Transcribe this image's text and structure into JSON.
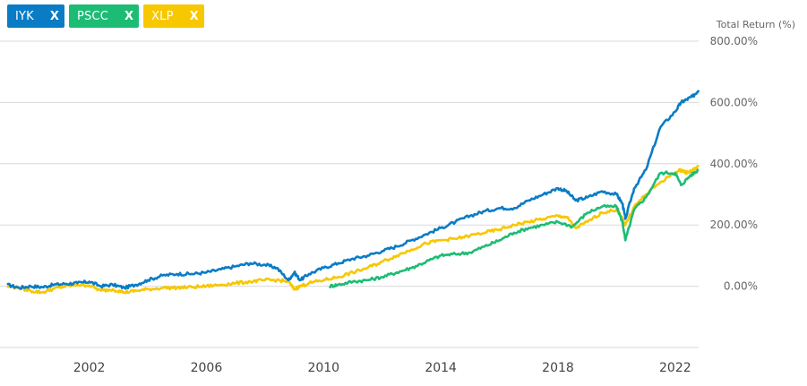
{
  "legend_chips": [
    {
      "label": "IYK",
      "close": "X",
      "color": "#0a7cc6"
    },
    {
      "label": "PSCC",
      "close": "X",
      "color": "#1dbc74"
    },
    {
      "label": "XLP",
      "close": "X",
      "color": "#f7c700"
    }
  ],
  "chart_data": {
    "type": "line",
    "ylabel": "Total Return (%)",
    "ylim": [
      -200,
      800
    ],
    "y_ticks": [
      "800.00%",
      "600.00%",
      "400.00%",
      "200.00%",
      "0.00%"
    ],
    "y_tick_values": [
      800,
      600,
      400,
      200,
      0
    ],
    "xlim": [
      1999.2,
      2022.8
    ],
    "x_ticks": [
      "2002",
      "2006",
      "2010",
      "2014",
      "2018",
      "2022"
    ],
    "x_tick_values": [
      2002,
      2006,
      2010,
      2014,
      2018,
      2022
    ],
    "grid": true,
    "series": [
      {
        "name": "IYK",
        "color": "#0a7cc6",
        "x": [
          1999.2,
          1999.6,
          2000.0,
          2000.4,
          2000.8,
          2001.2,
          2001.6,
          2002.0,
          2002.4,
          2002.8,
          2003.2,
          2003.6,
          2004.0,
          2004.5,
          2005.0,
          2005.5,
          2006.0,
          2006.5,
          2007.0,
          2007.5,
          2008.0,
          2008.4,
          2008.8,
          2009.0,
          2009.2,
          2009.5,
          2010.0,
          2010.5,
          2011.0,
          2011.5,
          2012.0,
          2012.5,
          2013.0,
          2013.5,
          2014.0,
          2014.5,
          2015.0,
          2015.5,
          2016.0,
          2016.5,
          2017.0,
          2017.5,
          2018.0,
          2018.3,
          2018.6,
          2019.0,
          2019.5,
          2020.0,
          2020.2,
          2020.3,
          2020.6,
          2021.0,
          2021.5,
          2022.0,
          2022.2,
          2022.4,
          2022.6,
          2022.8
        ],
        "values": [
          5,
          -5,
          0,
          -3,
          5,
          8,
          10,
          15,
          0,
          5,
          -5,
          5,
          20,
          35,
          40,
          40,
          45,
          55,
          65,
          75,
          70,
          60,
          20,
          45,
          20,
          40,
          60,
          75,
          90,
          100,
          115,
          130,
          150,
          170,
          190,
          210,
          230,
          245,
          255,
          255,
          280,
          300,
          320,
          310,
          280,
          290,
          310,
          300,
          270,
          220,
          320,
          380,
          520,
          570,
          600,
          610,
          620,
          640
        ]
      },
      {
        "name": "PSCC",
        "color": "#1dbc74",
        "x": [
          2010.2,
          2010.5,
          2011.0,
          2011.5,
          2012.0,
          2012.5,
          2013.0,
          2013.5,
          2014.0,
          2014.5,
          2015.0,
          2015.5,
          2016.0,
          2016.5,
          2017.0,
          2017.5,
          2018.0,
          2018.5,
          2019.0,
          2019.5,
          2020.0,
          2020.2,
          2020.3,
          2020.6,
          2021.0,
          2021.5,
          2022.0,
          2022.2,
          2022.5,
          2022.8
        ],
        "values": [
          0,
          5,
          15,
          20,
          30,
          45,
          60,
          80,
          100,
          105,
          110,
          130,
          150,
          175,
          190,
          200,
          210,
          195,
          240,
          260,
          260,
          210,
          150,
          250,
          290,
          370,
          370,
          330,
          360,
          380
        ]
      },
      {
        "name": "XLP",
        "color": "#f7c700",
        "x": [
          1999.2,
          1999.6,
          2000.0,
          2000.4,
          2000.8,
          2001.2,
          2001.6,
          2002.0,
          2002.4,
          2002.8,
          2003.2,
          2003.6,
          2004.0,
          2004.5,
          2005.0,
          2005.5,
          2006.0,
          2006.5,
          2007.0,
          2007.5,
          2008.0,
          2008.4,
          2008.8,
          2009.0,
          2009.2,
          2009.5,
          2010.0,
          2010.5,
          2011.0,
          2011.5,
          2012.0,
          2012.5,
          2013.0,
          2013.5,
          2014.0,
          2014.5,
          2015.0,
          2015.5,
          2016.0,
          2016.5,
          2017.0,
          2017.5,
          2018.0,
          2018.3,
          2018.6,
          2019.0,
          2019.5,
          2020.0,
          2020.2,
          2020.3,
          2020.6,
          2021.0,
          2021.5,
          2022.0,
          2022.2,
          2022.4,
          2022.6,
          2022.8
        ],
        "values": [
          0,
          -5,
          -15,
          -20,
          -8,
          0,
          5,
          3,
          -15,
          -10,
          -20,
          -15,
          -10,
          -5,
          -5,
          -3,
          0,
          5,
          10,
          15,
          20,
          20,
          15,
          -10,
          0,
          10,
          20,
          30,
          45,
          60,
          80,
          100,
          120,
          140,
          150,
          155,
          165,
          175,
          185,
          200,
          210,
          220,
          230,
          225,
          190,
          210,
          240,
          250,
          220,
          200,
          260,
          300,
          340,
          370,
          380,
          370,
          380,
          390
        ]
      }
    ]
  }
}
